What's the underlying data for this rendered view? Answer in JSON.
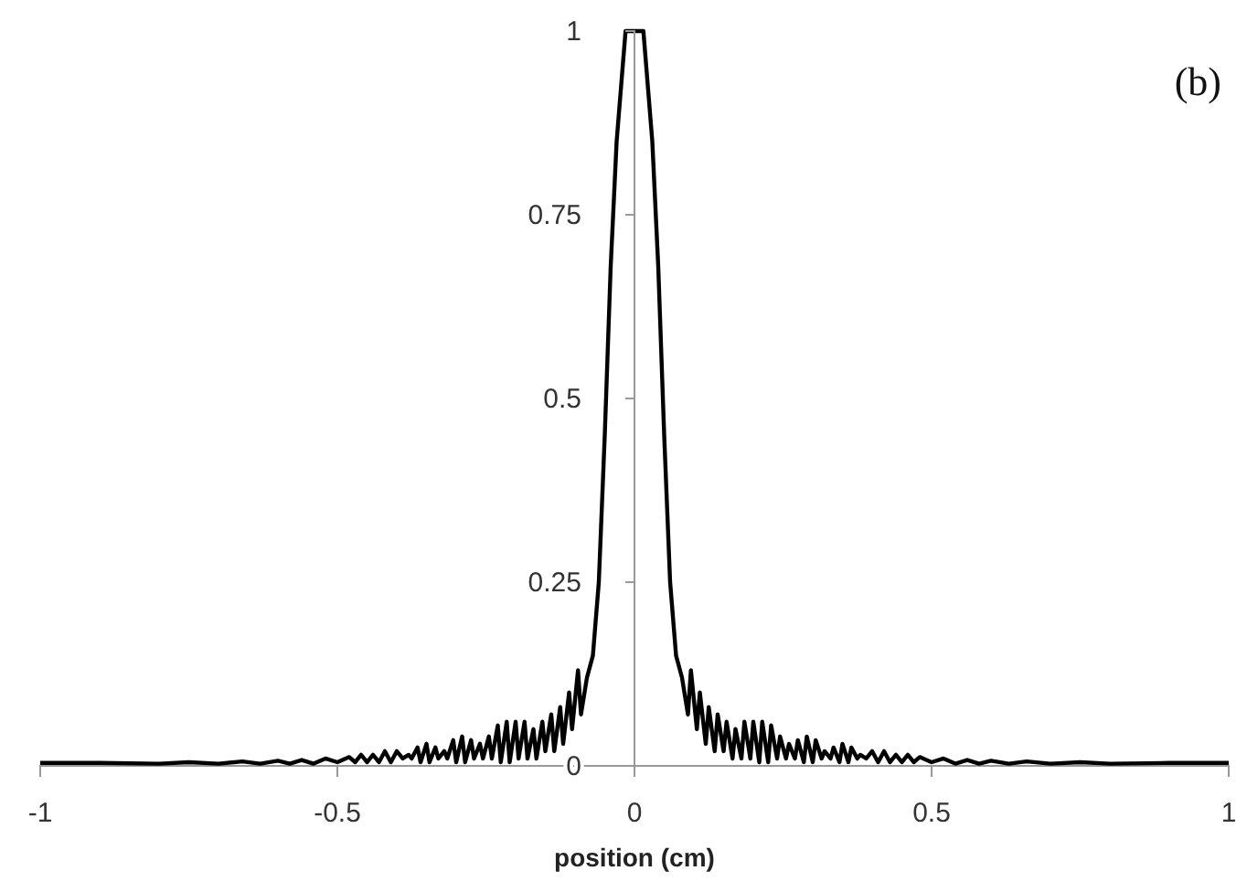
{
  "chart_data": {
    "type": "line",
    "xlabel": "position (cm)",
    "annotations": [
      "(b)"
    ],
    "xlim": [
      -1,
      1
    ],
    "ylim": [
      0,
      1
    ],
    "xticks": [
      -1,
      -0.5,
      0,
      0.5,
      1
    ],
    "yticks": [
      0,
      0.25,
      0.5,
      0.75,
      1
    ],
    "grid": false,
    "marker": "none",
    "line_style": "solid",
    "series": [
      {
        "color": "#000000",
        "x": [
          -1,
          -0.9,
          -0.8,
          -0.75,
          -0.7,
          -0.66,
          -0.63,
          -0.6,
          -0.58,
          -0.56,
          -0.54,
          -0.52,
          -0.5,
          -0.48,
          -0.47,
          -0.46,
          -0.45,
          -0.44,
          -0.43,
          -0.42,
          -0.41,
          -0.4,
          -0.39,
          -0.38,
          -0.375,
          -0.365,
          -0.36,
          -0.35,
          -0.345,
          -0.335,
          -0.33,
          -0.32,
          -0.315,
          -0.305,
          -0.3,
          -0.29,
          -0.285,
          -0.275,
          -0.27,
          -0.26,
          -0.255,
          -0.245,
          -0.24,
          -0.23,
          -0.225,
          -0.215,
          -0.21,
          -0.2,
          -0.195,
          -0.185,
          -0.18,
          -0.17,
          -0.165,
          -0.155,
          -0.15,
          -0.14,
          -0.135,
          -0.125,
          -0.12,
          -0.11,
          -0.105,
          -0.095,
          -0.09,
          -0.08,
          -0.07,
          -0.06,
          -0.05,
          -0.04,
          -0.03,
          -0.015,
          0,
          0.015,
          0.03,
          0.04,
          0.05,
          0.06,
          0.07,
          0.08,
          0.09,
          0.095,
          0.105,
          0.11,
          0.12,
          0.125,
          0.135,
          0.14,
          0.15,
          0.155,
          0.165,
          0.17,
          0.18,
          0.185,
          0.195,
          0.2,
          0.21,
          0.215,
          0.225,
          0.23,
          0.24,
          0.245,
          0.255,
          0.26,
          0.27,
          0.275,
          0.285,
          0.29,
          0.3,
          0.305,
          0.315,
          0.32,
          0.33,
          0.335,
          0.345,
          0.35,
          0.36,
          0.365,
          0.375,
          0.38,
          0.39,
          0.4,
          0.41,
          0.42,
          0.43,
          0.44,
          0.45,
          0.46,
          0.47,
          0.48,
          0.5,
          0.52,
          0.54,
          0.56,
          0.58,
          0.6,
          0.63,
          0.66,
          0.7,
          0.75,
          0.8,
          0.9,
          1
        ],
        "values": [
          0.004,
          0.004,
          0.003,
          0.005,
          0.003,
          0.006,
          0.003,
          0.007,
          0.003,
          0.008,
          0.003,
          0.01,
          0.005,
          0.012,
          0.005,
          0.015,
          0.005,
          0.015,
          0.005,
          0.02,
          0.005,
          0.02,
          0.01,
          0.015,
          0.01,
          0.025,
          0.005,
          0.03,
          0.005,
          0.025,
          0.01,
          0.02,
          0.01,
          0.035,
          0.005,
          0.04,
          0.005,
          0.035,
          0.01,
          0.03,
          0.01,
          0.04,
          0.01,
          0.055,
          0.005,
          0.06,
          0.005,
          0.06,
          0.01,
          0.06,
          0.01,
          0.05,
          0.01,
          0.06,
          0.02,
          0.07,
          0.02,
          0.08,
          0.03,
          0.1,
          0.05,
          0.13,
          0.07,
          0.12,
          0.15,
          0.25,
          0.45,
          0.68,
          0.85,
          1,
          1,
          1,
          0.85,
          0.68,
          0.45,
          0.25,
          0.15,
          0.12,
          0.07,
          0.13,
          0.05,
          0.1,
          0.03,
          0.08,
          0.02,
          0.07,
          0.02,
          0.06,
          0.01,
          0.05,
          0.01,
          0.06,
          0.01,
          0.06,
          0.005,
          0.06,
          0.005,
          0.055,
          0.01,
          0.04,
          0.01,
          0.03,
          0.01,
          0.035,
          0.005,
          0.04,
          0.005,
          0.035,
          0.01,
          0.02,
          0.01,
          0.025,
          0.005,
          0.03,
          0.005,
          0.025,
          0.01,
          0.015,
          0.01,
          0.02,
          0.005,
          0.02,
          0.005,
          0.015,
          0.005,
          0.015,
          0.005,
          0.012,
          0.005,
          0.01,
          0.003,
          0.008,
          0.003,
          0.007,
          0.003,
          0.006,
          0.003,
          0.005,
          0.003,
          0.004,
          0.004
        ]
      }
    ]
  }
}
